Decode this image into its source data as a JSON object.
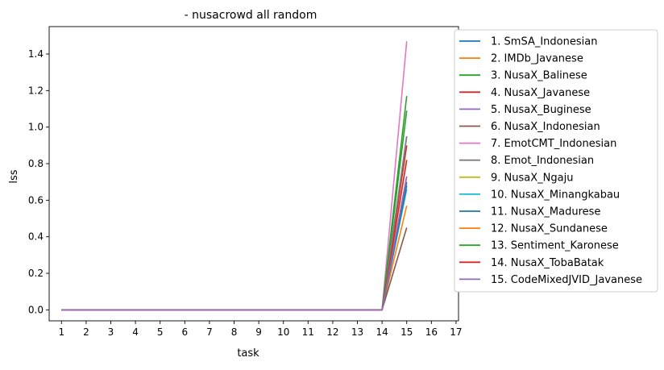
{
  "chart_data": {
    "type": "line",
    "title": "- nusacrowd all random",
    "xlabel": "task",
    "ylabel": "lss",
    "xlim": [
      0.5,
      17.1
    ],
    "ylim": [
      -0.06,
      1.55
    ],
    "x_ticks": [
      "1",
      "2",
      "3",
      "4",
      "5",
      "6",
      "7",
      "8",
      "9",
      "10",
      "11",
      "12",
      "13",
      "14",
      "15",
      "16",
      "17"
    ],
    "y_ticks": [
      "0.0",
      "0.2",
      "0.4",
      "0.6",
      "0.8",
      "1.0",
      "1.2",
      "1.4"
    ],
    "grid": false,
    "legend_position": "outside-right",
    "x": [
      1,
      2,
      3,
      4,
      5,
      6,
      7,
      8,
      9,
      10,
      11,
      12,
      13,
      14,
      15
    ],
    "series": [
      {
        "name": "1. SmSA_Indonesian",
        "color": "#1f77b4",
        "values": [
          0,
          0,
          0,
          0,
          0,
          0,
          0,
          0,
          0,
          0,
          0,
          0,
          0,
          0,
          0.7
        ]
      },
      {
        "name": "2. IMDb_Javanese",
        "color": "#ff7f0e",
        "values": [
          0,
          0,
          0,
          0,
          0,
          0,
          0,
          0,
          0,
          0,
          0,
          0,
          0,
          0,
          0.57
        ]
      },
      {
        "name": "3. NusaX_Balinese",
        "color": "#2ca02c",
        "values": [
          0,
          0,
          0,
          0,
          0,
          0,
          0,
          0,
          0,
          0,
          0,
          0,
          0,
          0,
          1.09
        ]
      },
      {
        "name": "4. NusaX_Javanese",
        "color": "#d62728",
        "values": [
          0,
          0,
          0,
          0,
          0,
          0,
          0,
          0,
          0,
          0,
          0,
          0,
          0,
          0,
          0.9
        ]
      },
      {
        "name": "5. NusaX_Buginese",
        "color": "#9467bd",
        "values": [
          0,
          0,
          0,
          0,
          0,
          0,
          0,
          0,
          0,
          0,
          0,
          0,
          0,
          0,
          0.95
        ]
      },
      {
        "name": "6. NusaX_Indonesian",
        "color": "#8c564b",
        "values": [
          0,
          0,
          0,
          0,
          0,
          0,
          0,
          0,
          0,
          0,
          0,
          0,
          0,
          0,
          0.45
        ]
      },
      {
        "name": "7. EmotCMT_Indonesian",
        "color": "#e377c2",
        "values": [
          0,
          0,
          0,
          0,
          0,
          0,
          0,
          0,
          0,
          0,
          0,
          0,
          0,
          0,
          1.47
        ]
      },
      {
        "name": "8. Emot_Indonesian",
        "color": "#7f7f7f",
        "values": [
          0,
          0,
          0,
          0,
          0,
          0,
          0,
          0,
          0,
          0,
          0,
          0,
          0,
          0,
          0.95
        ]
      },
      {
        "name": "9. NusaX_Ngaju",
        "color": "#bcbd22",
        "values": [
          0,
          0,
          0,
          0,
          0,
          0,
          0,
          0,
          0,
          0,
          0,
          0,
          0,
          0,
          0.82
        ]
      },
      {
        "name": "10. NusaX_Minangkabau",
        "color": "#17becf",
        "values": [
          0,
          0,
          0,
          0,
          0,
          0,
          0,
          0,
          0,
          0,
          0,
          0,
          0,
          0,
          0.66
        ]
      },
      {
        "name": "11. NusaX_Madurese",
        "color": "#1f77b4",
        "values": [
          0,
          0,
          0,
          0,
          0,
          0,
          0,
          0,
          0,
          0,
          0,
          0,
          0,
          0,
          0.68
        ]
      },
      {
        "name": "12. NusaX_Sundanese",
        "color": "#ff7f0e",
        "values": [
          0,
          0,
          0,
          0,
          0,
          0,
          0,
          0,
          0,
          0,
          0,
          0,
          0,
          0,
          0.73
        ]
      },
      {
        "name": "13. Sentiment_Karonese",
        "color": "#2ca02c",
        "values": [
          0,
          0,
          0,
          0,
          0,
          0,
          0,
          0,
          0,
          0,
          0,
          0,
          0,
          0,
          1.17
        ]
      },
      {
        "name": "14. NusaX_TobaBatak",
        "color": "#d62728",
        "values": [
          0,
          0,
          0,
          0,
          0,
          0,
          0,
          0,
          0,
          0,
          0,
          0,
          0,
          0,
          0.82
        ]
      },
      {
        "name": "15. CodeMixedJVID_Javanese",
        "color": "#9467bd",
        "values": [
          0,
          0,
          0,
          0,
          0,
          0,
          0,
          0,
          0,
          0,
          0,
          0,
          0,
          0,
          0.73
        ]
      }
    ]
  }
}
